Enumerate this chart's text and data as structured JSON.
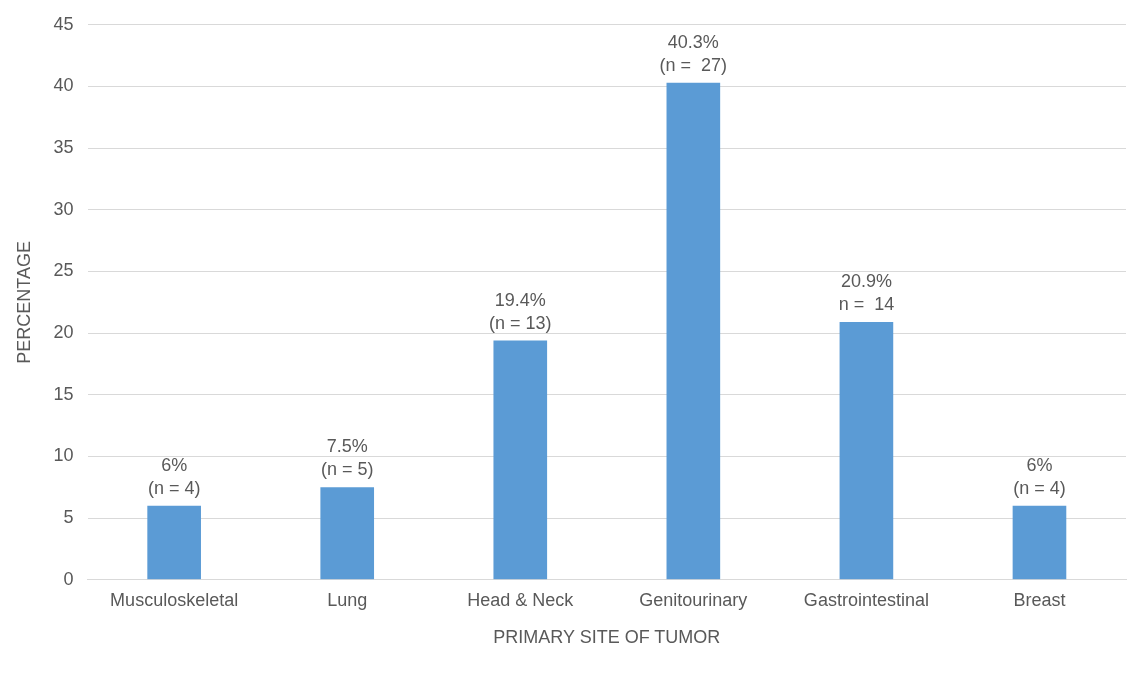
{
  "chart_data": {
    "type": "bar",
    "xlabel": "PRIMARY SITE OF TUMOR",
    "ylabel": "PERCENTAGE",
    "categories": [
      "Musculoskeletal",
      "Lung",
      "Head & Neck",
      "Genitourinary",
      "Gastrointestinal",
      "Breast"
    ],
    "values": [
      6,
      7.5,
      19.4,
      40.3,
      20.9,
      6
    ],
    "value_labels": [
      "6%\n(n = 4)",
      "7.5%\n(n = 5)",
      "19.4%\n(n = 13)",
      "40.3%\n(n =  27)",
      "20.9%\nn =  14",
      "6%\n(n = 4)"
    ],
    "color": "#5b9bd5",
    "ylim": [
      0,
      45
    ],
    "yticks": [
      0,
      5,
      10,
      15,
      20,
      25,
      30,
      35,
      40,
      45
    ],
    "grid": "y",
    "legend": false
  }
}
